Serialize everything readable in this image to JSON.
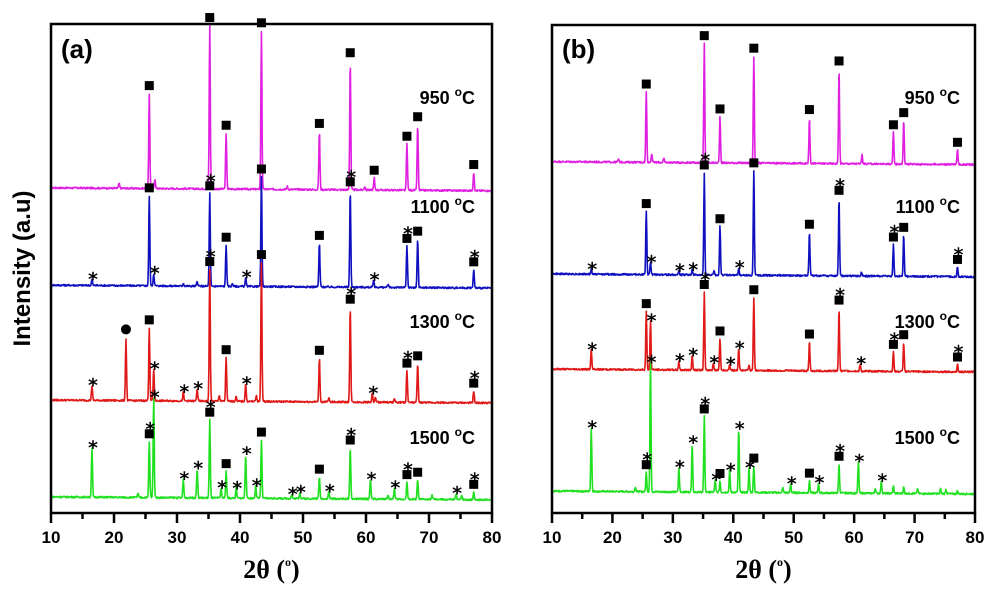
{
  "figure": {
    "legend_markers": {
      "square": "phase marked with filled square",
      "star": "phase marked with asterisk",
      "circle": "phase marked with filled circle"
    }
  },
  "chart_data": [
    {
      "type": "line",
      "panel_label": "(a)",
      "title": "",
      "xlabel": "2θ (°)",
      "xlabel_main": "2θ (",
      "xlabel_deg": "o",
      "xlabel_close": ")",
      "ylabel": "Intensity (a.u)",
      "xlim": [
        10,
        80
      ],
      "ylim": [
        0,
        100
      ],
      "x_ticks": [
        10,
        20,
        30,
        40,
        50,
        60,
        70,
        80
      ],
      "x_tick_labels": [
        "10",
        "20",
        "30",
        "40",
        "50",
        "60",
        "70",
        "80"
      ],
      "grid": false,
      "series": [
        {
          "name": "950 °C",
          "label_number": "950",
          "color": "#e020e0",
          "baseline": 66.5,
          "peaks": [
            [
              20.8,
              1.0,
              null
            ],
            [
              25.6,
              19.5,
              "square"
            ],
            [
              26.5,
              2.0,
              null
            ],
            [
              35.2,
              33.5,
              "square"
            ],
            [
              37.8,
              11.5,
              "square"
            ],
            [
              43.4,
              32.5,
              "square"
            ],
            [
              47.5,
              0.6,
              null
            ],
            [
              52.6,
              12.0,
              "square"
            ],
            [
              57.5,
              26.5,
              "square"
            ],
            [
              59.8,
              0.7,
              null
            ],
            [
              61.3,
              2.5,
              "square"
            ],
            [
              66.5,
              9.5,
              "square"
            ],
            [
              68.2,
              13.5,
              "square"
            ],
            [
              77.1,
              3.8,
              "square"
            ]
          ]
        },
        {
          "name": "1100 °C",
          "label_number": "1100",
          "color": "#1010c0",
          "baseline": 46.6,
          "peaks": [
            [
              16.5,
              1.2,
              "star"
            ],
            [
              25.6,
              18.5,
              "square"
            ],
            [
              26.3,
              2.5,
              "star"
            ],
            [
              31.0,
              0.6,
              null
            ],
            [
              33.2,
              0.9,
              null
            ],
            [
              35.2,
              19.0,
              "square-star"
            ],
            [
              37.8,
              8.5,
              "square"
            ],
            [
              38.8,
              0.6,
              null
            ],
            [
              40.9,
              1.8,
              "star"
            ],
            [
              43.4,
              22.5,
              "square"
            ],
            [
              52.6,
              9.0,
              "square"
            ],
            [
              57.5,
              20.0,
              "square-star"
            ],
            [
              61.2,
              1.5,
              "star"
            ],
            [
              63.5,
              0.6,
              null
            ],
            [
              66.5,
              8.5,
              "square-star"
            ],
            [
              68.2,
              10.0,
              "square"
            ],
            [
              77.1,
              3.8,
              "square-star"
            ]
          ]
        },
        {
          "name": "1300 °C",
          "label_number": "1300",
          "color": "#e01818",
          "baseline": 23.1,
          "peaks": [
            [
              16.5,
              3.0,
              "star"
            ],
            [
              21.9,
              12.5,
              "circle"
            ],
            [
              25.6,
              15.0,
              "square"
            ],
            [
              26.3,
              6.5,
              "star"
            ],
            [
              31.0,
              1.8,
              "star"
            ],
            [
              33.2,
              2.5,
              "star"
            ],
            [
              35.2,
              27.0,
              "square-star"
            ],
            [
              36.7,
              1.2,
              null
            ],
            [
              37.8,
              9.0,
              "square"
            ],
            [
              39.4,
              1.0,
              null
            ],
            [
              40.9,
              3.5,
              "star"
            ],
            [
              42.6,
              1.2,
              null
            ],
            [
              43.4,
              28.5,
              "square"
            ],
            [
              52.6,
              9.0,
              "square"
            ],
            [
              54.1,
              0.8,
              null
            ],
            [
              57.5,
              19.5,
              "square-star"
            ],
            [
              61.0,
              1.8,
              "star"
            ],
            [
              61.5,
              1.0,
              null
            ],
            [
              64.5,
              0.8,
              null
            ],
            [
              66.5,
              6.5,
              "square-star"
            ],
            [
              68.2,
              8.0,
              "square"
            ],
            [
              77.1,
              2.5,
              "square-star"
            ]
          ]
        },
        {
          "name": "1500 °C",
          "label_number": "1500",
          "color": "#20e020",
          "baseline": 3.3,
          "peaks": [
            [
              16.5,
              10.0,
              "star"
            ],
            [
              23.8,
              0.8,
              null
            ],
            [
              25.6,
              11.5,
              "square-star"
            ],
            [
              26.3,
              20.5,
              "star"
            ],
            [
              31.0,
              3.8,
              "star"
            ],
            [
              33.2,
              6.0,
              "star"
            ],
            [
              35.2,
              16.0,
              "square-star"
            ],
            [
              37.0,
              2.0,
              "star"
            ],
            [
              37.8,
              5.5,
              "square"
            ],
            [
              39.4,
              2.0,
              "star"
            ],
            [
              40.9,
              9.0,
              "star"
            ],
            [
              42.5,
              2.5,
              "star"
            ],
            [
              43.4,
              12.0,
              "square"
            ],
            [
              48.2,
              0.8,
              "star"
            ],
            [
              49.5,
              1.2,
              "star"
            ],
            [
              52.6,
              4.5,
              "square"
            ],
            [
              54.1,
              1.5,
              "star"
            ],
            [
              57.5,
              10.5,
              "square-star"
            ],
            [
              60.7,
              4.0,
              "star"
            ],
            [
              63.5,
              0.9,
              null
            ],
            [
              64.5,
              2.3,
              "star"
            ],
            [
              66.5,
              3.5,
              "square-star"
            ],
            [
              68.2,
              4.0,
              "square"
            ],
            [
              70.5,
              0.9,
              null
            ],
            [
              74.3,
              1.2,
              "star"
            ],
            [
              75.2,
              1.0,
              null
            ],
            [
              77.1,
              1.6,
              "square-star"
            ]
          ]
        }
      ]
    },
    {
      "type": "line",
      "panel_label": "(b)",
      "title": "",
      "xlabel": "2θ (°)",
      "xlabel_main": "2θ (",
      "xlabel_deg": "o",
      "xlabel_close": ")",
      "ylabel": "",
      "xlim": [
        10,
        80
      ],
      "ylim": [
        0,
        100
      ],
      "x_ticks": [
        10,
        20,
        30,
        40,
        50,
        60,
        70,
        80
      ],
      "x_tick_labels": [
        "10",
        "20",
        "30",
        "40",
        "50",
        "60",
        "70",
        "80"
      ],
      "grid": false,
      "series": [
        {
          "name": "950 °C",
          "label_number": "950",
          "color": "#e020e0",
          "baseline": 72.0,
          "peaks": [
            [
              21.0,
              0.6,
              null
            ],
            [
              25.6,
              14.5,
              "square"
            ],
            [
              26.5,
              1.8,
              null
            ],
            [
              28.5,
              0.8,
              null
            ],
            [
              35.2,
              24.5,
              "square"
            ],
            [
              37.8,
              9.5,
              "square"
            ],
            [
              43.4,
              22.0,
              "square"
            ],
            [
              52.6,
              9.5,
              "square"
            ],
            [
              57.5,
              19.5,
              "square"
            ],
            [
              61.3,
              1.8,
              null
            ],
            [
              66.5,
              6.5,
              "square"
            ],
            [
              68.2,
              9.0,
              "square"
            ],
            [
              77.1,
              3.0,
              "square"
            ]
          ]
        },
        {
          "name": "1100 °C",
          "label_number": "1100",
          "color": "#1010c0",
          "baseline": 49.0,
          "peaks": [
            [
              16.5,
              1.0,
              "star"
            ],
            [
              25.6,
              13.0,
              "square"
            ],
            [
              26.3,
              2.5,
              "star"
            ],
            [
              31.0,
              0.8,
              "star"
            ],
            [
              33.2,
              1.0,
              "star"
            ],
            [
              35.2,
              21.0,
              "square-star"
            ],
            [
              36.8,
              0.8,
              null
            ],
            [
              37.8,
              10.0,
              "square"
            ],
            [
              40.9,
              1.5,
              "star"
            ],
            [
              43.4,
              21.5,
              "square"
            ],
            [
              52.6,
              9.0,
              "square"
            ],
            [
              57.5,
              16.0,
              "square-star"
            ],
            [
              61.2,
              0.7,
              null
            ],
            [
              66.5,
              6.5,
              "square-star"
            ],
            [
              68.2,
              8.5,
              "square"
            ],
            [
              77.1,
              2.0,
              "square-star"
            ]
          ]
        },
        {
          "name": "1300 °C",
          "label_number": "1300",
          "color": "#e01818",
          "baseline": 29.5,
          "peaks": [
            [
              16.5,
              4.0,
              "star"
            ],
            [
              25.6,
              12.0,
              "square"
            ],
            [
              26.3,
              10.0,
              "star"
            ],
            [
              31.0,
              1.8,
              "star"
            ],
            [
              33.2,
              3.0,
              "star"
            ],
            [
              35.2,
              16.0,
              "square-star"
            ],
            [
              36.7,
              1.5,
              "star"
            ],
            [
              37.8,
              6.5,
              "square"
            ],
            [
              39.4,
              1.2,
              "star"
            ],
            [
              40.9,
              4.5,
              "star"
            ],
            [
              42.6,
              1.2,
              null
            ],
            [
              43.4,
              15.0,
              "square"
            ],
            [
              52.6,
              6.0,
              "square"
            ],
            [
              57.5,
              13.0,
              "square-star"
            ],
            [
              61.0,
              1.5,
              "star"
            ],
            [
              66.5,
              4.0,
              "square-star"
            ],
            [
              68.2,
              6.0,
              "square"
            ],
            [
              77.1,
              1.5,
              "square-star"
            ]
          ]
        },
        {
          "name": "1500 °C",
          "label_number": "1500",
          "color": "#20e020",
          "baseline": 4.5,
          "peaks": [
            [
              16.5,
              13.0,
              "star"
            ],
            [
              23.8,
              1.0,
              null
            ],
            [
              25.6,
              4.0,
              "square-star"
            ],
            [
              26.3,
              26.5,
              "star"
            ],
            [
              31.0,
              5.0,
              "star"
            ],
            [
              33.2,
              10.0,
              "star"
            ],
            [
              35.2,
              15.5,
              "square-star"
            ],
            [
              37.0,
              2.5,
              "star"
            ],
            [
              37.8,
              2.3,
              "square"
            ],
            [
              39.4,
              4.5,
              "star"
            ],
            [
              40.9,
              13.0,
              "star"
            ],
            [
              42.6,
              5.0,
              "star"
            ],
            [
              43.4,
              5.5,
              "square"
            ],
            [
              48.2,
              1.0,
              null
            ],
            [
              49.5,
              1.8,
              "star"
            ],
            [
              52.6,
              2.5,
              "square"
            ],
            [
              54.1,
              2.0,
              "star"
            ],
            [
              57.5,
              6.0,
              "square-star"
            ],
            [
              60.7,
              6.5,
              "star"
            ],
            [
              63.5,
              1.0,
              null
            ],
            [
              64.5,
              2.5,
              "star"
            ],
            [
              66.5,
              1.5,
              null
            ],
            [
              68.2,
              1.3,
              null
            ],
            [
              70.5,
              1.0,
              null
            ],
            [
              74.3,
              1.0,
              null
            ],
            [
              75.2,
              0.9,
              null
            ],
            [
              77.1,
              0.6,
              null
            ]
          ]
        }
      ]
    }
  ]
}
